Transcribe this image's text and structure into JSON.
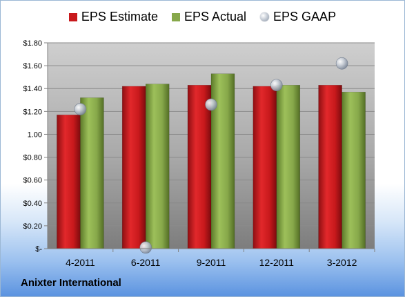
{
  "company_name": "Anixter International",
  "chart_data": {
    "type": "bar",
    "categories": [
      "4-2011",
      "6-2011",
      "9-2011",
      "12-2011",
      "3-2012"
    ],
    "series": [
      {
        "name": "EPS Estimate",
        "kind": "bar",
        "color": "#c8191c",
        "values": [
          1.17,
          1.42,
          1.43,
          1.42,
          1.43
        ]
      },
      {
        "name": "EPS Actual",
        "kind": "bar",
        "color": "#87a84a",
        "values": [
          1.32,
          1.44,
          1.53,
          1.43,
          1.37
        ]
      },
      {
        "name": "EPS GAAP",
        "kind": "marker",
        "color": "#b8c0cc",
        "values": [
          1.22,
          0.01,
          1.26,
          1.43,
          1.62
        ]
      }
    ],
    "ylim": [
      0,
      1.8
    ],
    "yticks": [
      0,
      0.2,
      0.4,
      0.6,
      0.8,
      1.0,
      1.2,
      1.4,
      1.6,
      1.8
    ],
    "ytick_labels": [
      "$-",
      "$0.20",
      "$0.40",
      "$0.60",
      "$0.80",
      "1.00",
      "$1.20",
      "$1.40",
      "$1.60",
      "$1.80"
    ],
    "grid": true,
    "legend_position": "top"
  }
}
